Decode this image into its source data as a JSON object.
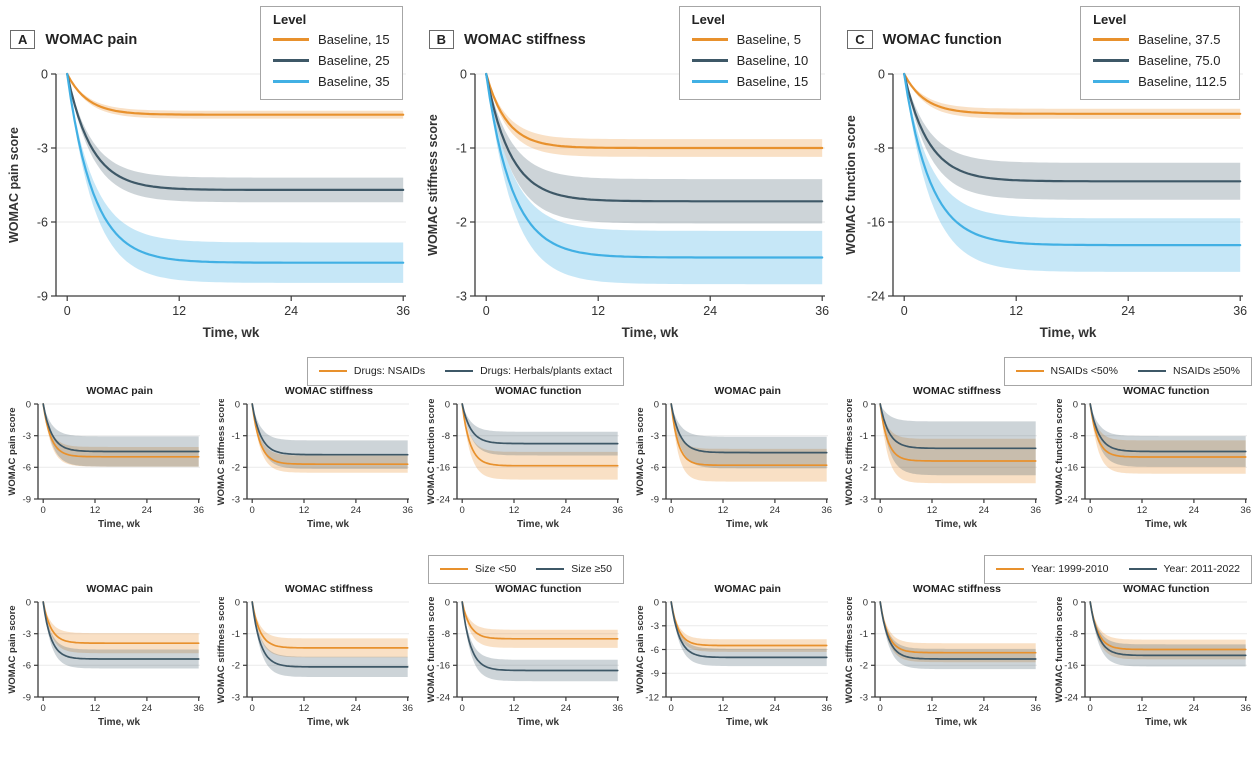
{
  "colors": {
    "orange": "#E8912D",
    "slate": "#3E5867",
    "blue": "#41B0E4",
    "orange_band": "rgba(232,145,45,0.28)",
    "slate_band": "rgba(62,88,103,0.26)",
    "blue_band": "rgba(65,176,228,0.30)",
    "grid": "#EAEAEA",
    "axis": "#3A3A3A",
    "text": "#333333",
    "legend_border": "#A6A6A6"
  },
  "chart_data": {
    "type": "line",
    "xlabel": "Time, wk",
    "xlim": [
      0,
      36
    ],
    "xticks": [
      0,
      12,
      24,
      36
    ],
    "top_panels": [
      {
        "panel_label": "A",
        "title": "WOMAC pain",
        "legend_title": "Level",
        "ylabel": "WOMAC pain score",
        "ylim": [
          -9,
          0
        ],
        "yticks": [
          0,
          -3,
          -6,
          -9
        ],
        "series": [
          {
            "label": "Baseline, 15",
            "color": "orange",
            "plateau": -1.65,
            "tau": 2.2,
            "band": 0.16
          },
          {
            "label": "Baseline, 25",
            "color": "slate",
            "plateau": -4.7,
            "tau": 2.6,
            "band": 0.5
          },
          {
            "label": "Baseline, 35",
            "color": "blue",
            "plateau": -7.65,
            "tau": 2.8,
            "band": 0.82
          }
        ]
      },
      {
        "panel_label": "B",
        "title": "WOMAC stiffness",
        "legend_title": "Level",
        "ylabel": "WOMAC stiffness score",
        "ylim": [
          -3,
          0
        ],
        "yticks": [
          0,
          -1,
          -2,
          -3
        ],
        "series": [
          {
            "label": "Baseline, 5",
            "color": "orange",
            "plateau": -1.0,
            "tau": 2.2,
            "band": 0.12
          },
          {
            "label": "Baseline, 10",
            "color": "slate",
            "plateau": -1.72,
            "tau": 2.6,
            "band": 0.3
          },
          {
            "label": "Baseline, 15",
            "color": "blue",
            "plateau": -2.48,
            "tau": 2.8,
            "band": 0.36
          }
        ]
      },
      {
        "panel_label": "C",
        "title": "WOMAC function",
        "legend_title": "Level",
        "ylabel": "WOMAC function score",
        "ylim": [
          -24,
          0
        ],
        "yticks": [
          0,
          -8,
          -16,
          -24
        ],
        "series": [
          {
            "label": "Baseline, 37.5",
            "color": "orange",
            "plateau": -4.3,
            "tau": 2.2,
            "band": 0.55
          },
          {
            "label": "Baseline, 75.0",
            "color": "slate",
            "plateau": -11.6,
            "tau": 2.6,
            "band": 2.0
          },
          {
            "label": "Baseline, 112.5",
            "color": "blue",
            "plateau": -18.5,
            "tau": 2.8,
            "band": 2.9
          }
        ]
      }
    ],
    "subgroup_rows": [
      [
        {
          "legend": [
            {
              "label": "Drugs: NSAIDs",
              "color": "orange"
            },
            {
              "label": "Drugs: Herbals/plants extact",
              "color": "slate"
            }
          ],
          "panels": [
            {
              "title": "WOMAC pain",
              "ylabel": "WOMAC pain score",
              "ylim": [
                -9,
                0
              ],
              "yticks": [
                0,
                -3,
                -6,
                -9
              ],
              "series": [
                {
                  "color": "orange",
                  "plateau": -5.0,
                  "tau": 1.8,
                  "band": 0.93
                },
                {
                  "color": "slate",
                  "plateau": -4.5,
                  "tau": 2.0,
                  "band": 1.43
                }
              ]
            },
            {
              "title": "WOMAC stiffness",
              "ylabel": "WOMAC stiffness score",
              "ylim": [
                -3,
                0
              ],
              "yticks": [
                0,
                -1,
                -2,
                -3
              ],
              "series": [
                {
                  "color": "orange",
                  "plateau": -1.9,
                  "tau": 1.8,
                  "band": 0.27
                },
                {
                  "color": "slate",
                  "plateau": -1.6,
                  "tau": 2.0,
                  "band": 0.45
                }
              ]
            },
            {
              "title": "WOMAC function",
              "ylabel": "WOMAC function score",
              "ylim": [
                -24,
                0
              ],
              "yticks": [
                0,
                -8,
                -16,
                -24
              ],
              "series": [
                {
                  "color": "orange",
                  "plateau": -15.6,
                  "tau": 1.8,
                  "band": 3.5
                },
                {
                  "color": "slate",
                  "plateau": -10.0,
                  "tau": 2.0,
                  "band": 3.0
                }
              ]
            }
          ]
        },
        {
          "legend": [
            {
              "label": "NSAIDs <50%",
              "color": "orange"
            },
            {
              "label": "NSAIDs ≥50%",
              "color": "slate"
            }
          ],
          "panels": [
            {
              "title": "WOMAC pain",
              "ylabel": "WOMAC pain score",
              "ylim": [
                -9,
                0
              ],
              "yticks": [
                0,
                -3,
                -6,
                -9
              ],
              "series": [
                {
                  "color": "orange",
                  "plateau": -5.8,
                  "tau": 1.6,
                  "band": 1.55
                },
                {
                  "color": "slate",
                  "plateau": -4.6,
                  "tau": 2.0,
                  "band": 1.5
                }
              ]
            },
            {
              "title": "WOMAC stiffness",
              "ylabel": "WOMAC stiffness score",
              "ylim": [
                -3,
                0
              ],
              "yticks": [
                0,
                -1,
                -2,
                -3
              ],
              "series": [
                {
                  "color": "orange",
                  "plateau": -1.8,
                  "tau": 1.7,
                  "band": 0.7
                },
                {
                  "color": "slate",
                  "plateau": -1.4,
                  "tau": 2.0,
                  "band": 0.85
                }
              ]
            },
            {
              "title": "WOMAC function",
              "ylabel": "WOMAC function score",
              "ylim": [
                -24,
                0
              ],
              "yticks": [
                0,
                -8,
                -16,
                -24
              ],
              "series": [
                {
                  "color": "orange",
                  "plateau": -13.4,
                  "tau": 1.7,
                  "band": 4.2
                },
                {
                  "color": "slate",
                  "plateau": -12.0,
                  "tau": 2.0,
                  "band": 3.9
                }
              ]
            }
          ]
        }
      ],
      [
        {
          "legend": [
            {
              "label": "Size <50",
              "color": "orange"
            },
            {
              "label": "Size ≥50",
              "color": "slate"
            }
          ],
          "panels": [
            {
              "title": "WOMAC pain",
              "ylabel": "WOMAC pain score",
              "ylim": [
                -9,
                0
              ],
              "yticks": [
                0,
                -3,
                -6,
                -9
              ],
              "series": [
                {
                  "color": "orange",
                  "plateau": -3.9,
                  "tau": 1.8,
                  "band": 0.95
                },
                {
                  "color": "slate",
                  "plateau": -5.4,
                  "tau": 1.8,
                  "band": 0.9
                }
              ]
            },
            {
              "title": "WOMAC stiffness",
              "ylabel": "WOMAC stiffness score",
              "ylim": [
                -3,
                0
              ],
              "yticks": [
                0,
                -1,
                -2,
                -3
              ],
              "series": [
                {
                  "color": "orange",
                  "plateau": -1.45,
                  "tau": 1.8,
                  "band": 0.3
                },
                {
                  "color": "slate",
                  "plateau": -2.05,
                  "tau": 1.9,
                  "band": 0.32
                }
              ]
            },
            {
              "title": "WOMAC function",
              "ylabel": "WOMAC function score",
              "ylim": [
                -24,
                0
              ],
              "yticks": [
                0,
                -8,
                -16,
                -24
              ],
              "series": [
                {
                  "color": "orange",
                  "plateau": -9.3,
                  "tau": 1.8,
                  "band": 2.3
                },
                {
                  "color": "slate",
                  "plateau": -17.3,
                  "tau": 1.9,
                  "band": 2.7
                }
              ]
            }
          ]
        },
        {
          "legend": [
            {
              "label": "Year: 1999-2010",
              "color": "orange"
            },
            {
              "label": "Year: 2011-2022",
              "color": "slate"
            }
          ],
          "panels": [
            {
              "title": "WOMAC pain",
              "ylabel": "WOMAC pain score",
              "ylim": [
                -12,
                0
              ],
              "yticks": [
                0,
                -3,
                -6,
                -9,
                -12
              ],
              "series": [
                {
                  "color": "orange",
                  "plateau": -5.5,
                  "tau": 1.7,
                  "band": 0.8
                },
                {
                  "color": "slate",
                  "plateau": -7.0,
                  "tau": 1.9,
                  "band": 1.1
                }
              ]
            },
            {
              "title": "WOMAC stiffness",
              "ylabel": "WOMAC stiffness score",
              "ylim": [
                -3,
                0
              ],
              "yticks": [
                0,
                -1,
                -2,
                -3
              ],
              "series": [
                {
                  "color": "orange",
                  "plateau": -1.6,
                  "tau": 1.8,
                  "band": 0.3
                },
                {
                  "color": "slate",
                  "plateau": -1.8,
                  "tau": 1.9,
                  "band": 0.32
                }
              ]
            },
            {
              "title": "WOMAC function",
              "ylabel": "WOMAC function score",
              "ylim": [
                -24,
                0
              ],
              "yticks": [
                0,
                -8,
                -16,
                -24
              ],
              "series": [
                {
                  "color": "orange",
                  "plateau": -12.0,
                  "tau": 1.8,
                  "band": 2.5
                },
                {
                  "color": "slate",
                  "plateau": -13.5,
                  "tau": 1.9,
                  "band": 2.8
                }
              ]
            }
          ]
        }
      ]
    ]
  }
}
